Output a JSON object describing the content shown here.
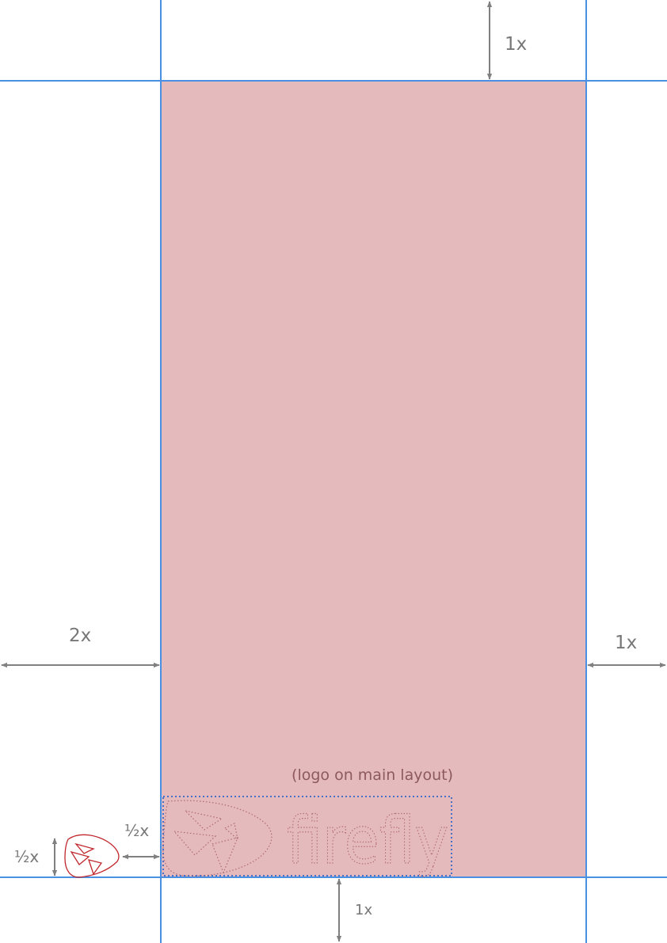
{
  "diagram": {
    "labels": {
      "top_margin": "1x",
      "left_margin": "2x",
      "right_margin": "1x",
      "bottom_margin": "1x",
      "logo_side_gap": "½x",
      "logo_height": "½x",
      "logo_note": "(logo on main layout)"
    },
    "logo": {
      "wordmark": "firefly"
    },
    "colors": {
      "guide": "#4a90e2",
      "area_fill": "#e4babc",
      "dimension": "#808080",
      "logo_outline": "#c0272d",
      "logo_box": "#4a6fc9"
    }
  }
}
